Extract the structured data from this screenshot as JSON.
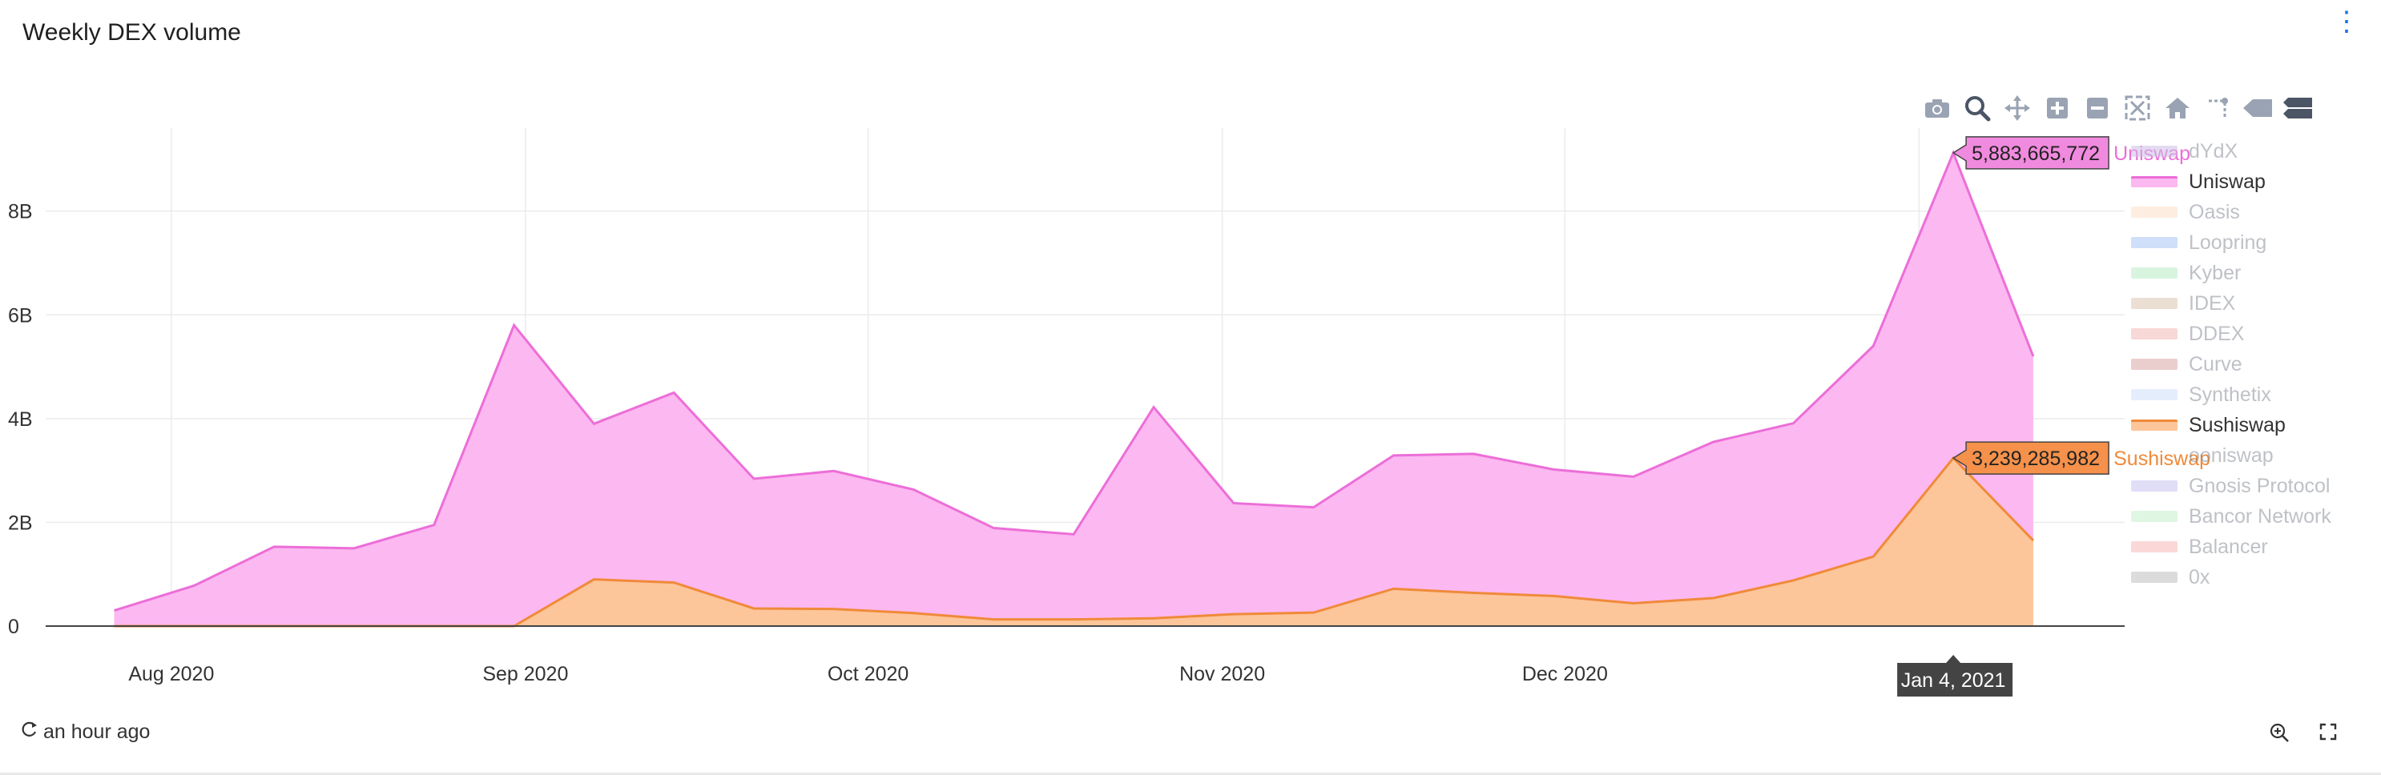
{
  "header": {
    "title": "Weekly DEX volume"
  },
  "status": {
    "refreshed": "an hour ago"
  },
  "colors": {
    "uniswap_fill": "#fcb8f0",
    "uniswap_line": "#ec6ed8",
    "sushiswap_fill": "#fdc59a",
    "sushiswap_line": "#f08a3a"
  },
  "legend": [
    {
      "name": "dYdX",
      "color": "#cdbfe6",
      "active": false
    },
    {
      "name": "Uniswap",
      "color": "#fcb8f0",
      "line": "#ec6ed8",
      "active": true
    },
    {
      "name": "Oasis",
      "color": "#fde0c8",
      "active": false
    },
    {
      "name": "Loopring",
      "color": "#a9c4f5",
      "active": false
    },
    {
      "name": "Kyber",
      "color": "#b9ecc6",
      "active": false
    },
    {
      "name": "IDEX",
      "color": "#dcc5b0",
      "active": false
    },
    {
      "name": "DDEX",
      "color": "#f4b8b8",
      "active": false
    },
    {
      "name": "Curve",
      "color": "#d9a7a7",
      "active": false
    },
    {
      "name": "Synthetix",
      "color": "#cfe0fb",
      "active": false
    },
    {
      "name": "Sushiswap",
      "color": "#fdc59a",
      "line": "#f08a3a",
      "active": true
    },
    {
      "name": "ooniswap",
      "color": "#ffffff",
      "active": false
    },
    {
      "name": "Gnosis Protocol",
      "color": "#c8c3f2",
      "active": false
    },
    {
      "name": "Bancor Network",
      "color": "#c6f0cc",
      "active": false
    },
    {
      "name": "Balancer",
      "color": "#f7b9b9",
      "active": false
    },
    {
      "name": "0x",
      "color": "#bfbfbf",
      "active": false
    }
  ],
  "modebar_icons": [
    "camera-icon",
    "zoom-icon",
    "pan-icon",
    "zoom-in-icon",
    "zoom-out-icon",
    "autoscale-icon",
    "home-icon",
    "spike-lines-icon",
    "hover-closest-icon",
    "hover-compare-icon"
  ],
  "chart_data": {
    "type": "area",
    "stacked": true,
    "xaxis_ticks": [
      "Aug 2020",
      "Sep 2020",
      "Oct 2020",
      "Nov 2020",
      "Dec 2020",
      "Ja"
    ],
    "yaxis_ticks": [
      "0",
      "2B",
      "4B",
      "6B",
      "8B"
    ],
    "ylim": [
      0,
      9600000000
    ],
    "grid": true,
    "legend_position": "right",
    "x": [
      "2020-07-27",
      "2020-08-03",
      "2020-08-10",
      "2020-08-17",
      "2020-08-24",
      "2020-08-31",
      "2020-09-07",
      "2020-09-14",
      "2020-09-21",
      "2020-09-28",
      "2020-10-05",
      "2020-10-12",
      "2020-10-19",
      "2020-10-26",
      "2020-11-02",
      "2020-11-09",
      "2020-11-16",
      "2020-11-23",
      "2020-11-30",
      "2020-12-07",
      "2020-12-14",
      "2020-12-21",
      "2020-12-28",
      "2021-01-04",
      "2021-01-11"
    ],
    "series": [
      {
        "name": "Sushiswap",
        "values": [
          0,
          0,
          0,
          0,
          0,
          0,
          900000000,
          840000000,
          340000000,
          330000000,
          250000000,
          130000000,
          130000000,
          150000000,
          230000000,
          260000000,
          720000000,
          640000000,
          580000000,
          440000000,
          540000000,
          880000000,
          1340000000,
          3239285982,
          1650000000
        ]
      },
      {
        "name": "Uniswap",
        "values": [
          300000000,
          780000000,
          1530000000,
          1500000000,
          1950000000,
          5800000000,
          3000000000,
          3660000000,
          2500000000,
          2660000000,
          2380000000,
          1760000000,
          1640000000,
          4070000000,
          2140000000,
          2030000000,
          2570000000,
          2680000000,
          2440000000,
          2440000000,
          3010000000,
          3030000000,
          4060000000,
          5883665772,
          3550000000
        ]
      }
    ],
    "hover": {
      "x_label": "Jan 4, 2021",
      "labels": [
        {
          "series": "Uniswap",
          "value": "5,883,665,772"
        },
        {
          "series": "Sushiswap",
          "value": "3,239,285,982"
        }
      ]
    }
  }
}
